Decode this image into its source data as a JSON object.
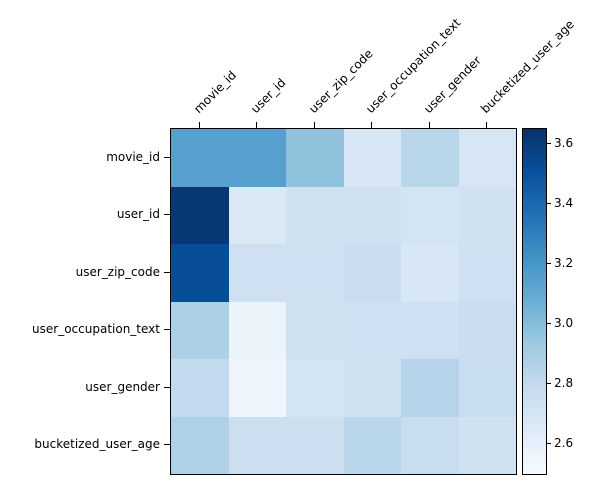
{
  "chart_data": {
    "type": "heatmap",
    "title": "",
    "xlabel": "",
    "ylabel": "",
    "labels": [
      "movie_id",
      "user_id",
      "user_zip_code",
      "user_occupation_text",
      "user_gender",
      "bucketized_user_age"
    ],
    "matrix": [
      [
        3.15,
        3.15,
        2.97,
        2.68,
        2.83,
        2.69
      ],
      [
        3.62,
        2.67,
        2.73,
        2.73,
        2.71,
        2.73
      ],
      [
        3.52,
        2.74,
        2.74,
        2.76,
        2.68,
        2.74
      ],
      [
        2.88,
        2.57,
        2.73,
        2.74,
        2.74,
        2.76
      ],
      [
        2.8,
        2.55,
        2.71,
        2.73,
        2.85,
        2.77
      ],
      [
        2.87,
        2.75,
        2.75,
        2.83,
        2.77,
        2.73
      ]
    ],
    "vmin": 2.5,
    "vmax": 3.65,
    "colormap": "Blues",
    "grid": false,
    "legend": "colorbar-right",
    "colorbar_ticks": [
      2.6,
      2.8,
      3.0,
      3.2,
      3.4,
      3.6
    ],
    "colorbar_tick_labels": [
      "2.6",
      "2.8",
      "3.0",
      "3.2",
      "3.4",
      "3.6"
    ]
  },
  "colors": {
    "background": "#ffffff",
    "frame": "#000000",
    "text": "#000000",
    "colormap_stops": [
      "#f7fbff",
      "#deebf7",
      "#c6dbef",
      "#9ecae1",
      "#6baed6",
      "#4292c6",
      "#2171b5",
      "#08519c",
      "#08306b"
    ]
  }
}
